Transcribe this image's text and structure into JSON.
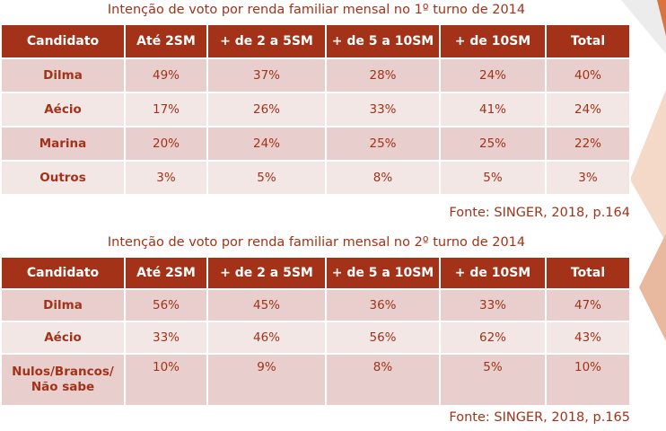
{
  "table1": {
    "title": "Intenção de voto por renda familiar mensal no 1º turno de 2014",
    "headers": [
      "Candidato",
      "Até 2SM",
      "+ de 2 a 5SM",
      "+ de 5 a 10SM",
      "+ de 10SM",
      "Total"
    ],
    "rows": [
      [
        "Dilma",
        "49%",
        "37%",
        "28%",
        "24%",
        "40%"
      ],
      [
        "Aécio",
        "17%",
        "26%",
        "33%",
        "41%",
        "24%"
      ],
      [
        "Marina",
        "20%",
        "24%",
        "25%",
        "25%",
        "22%"
      ],
      [
        "Outros",
        "3%",
        "5%",
        "8%",
        "5%",
        "3%"
      ]
    ],
    "source": "Fonte: SINGER, 2018, p.164"
  },
  "table2": {
    "title": "Intenção de voto por renda familiar mensal no 2º turno de 2014",
    "headers": [
      "Candidato",
      "Até 2SM",
      "+ de 2 a 5SM",
      "+ de 5 a 10SM",
      "+ de 10SM",
      "Total"
    ],
    "rows": [
      [
        "Dilma",
        "56%",
        "45%",
        "36%",
        "33%",
        "47%"
      ],
      [
        "Aécio",
        "33%",
        "46%",
        "56%",
        "62%",
        "43%"
      ],
      [
        "Nulos/Brancos/\nNão sabe",
        "10%",
        "9%",
        "8%",
        "5%",
        "10%"
      ]
    ],
    "source": "Fonte: SINGER, 2018, p.165"
  },
  "colors": {
    "header_bg": "#a33218",
    "row_odd": "#e8cfcd",
    "row_even": "#f3e7e6",
    "text_accent": "#a33218",
    "deco_orange": "#d9743f"
  }
}
